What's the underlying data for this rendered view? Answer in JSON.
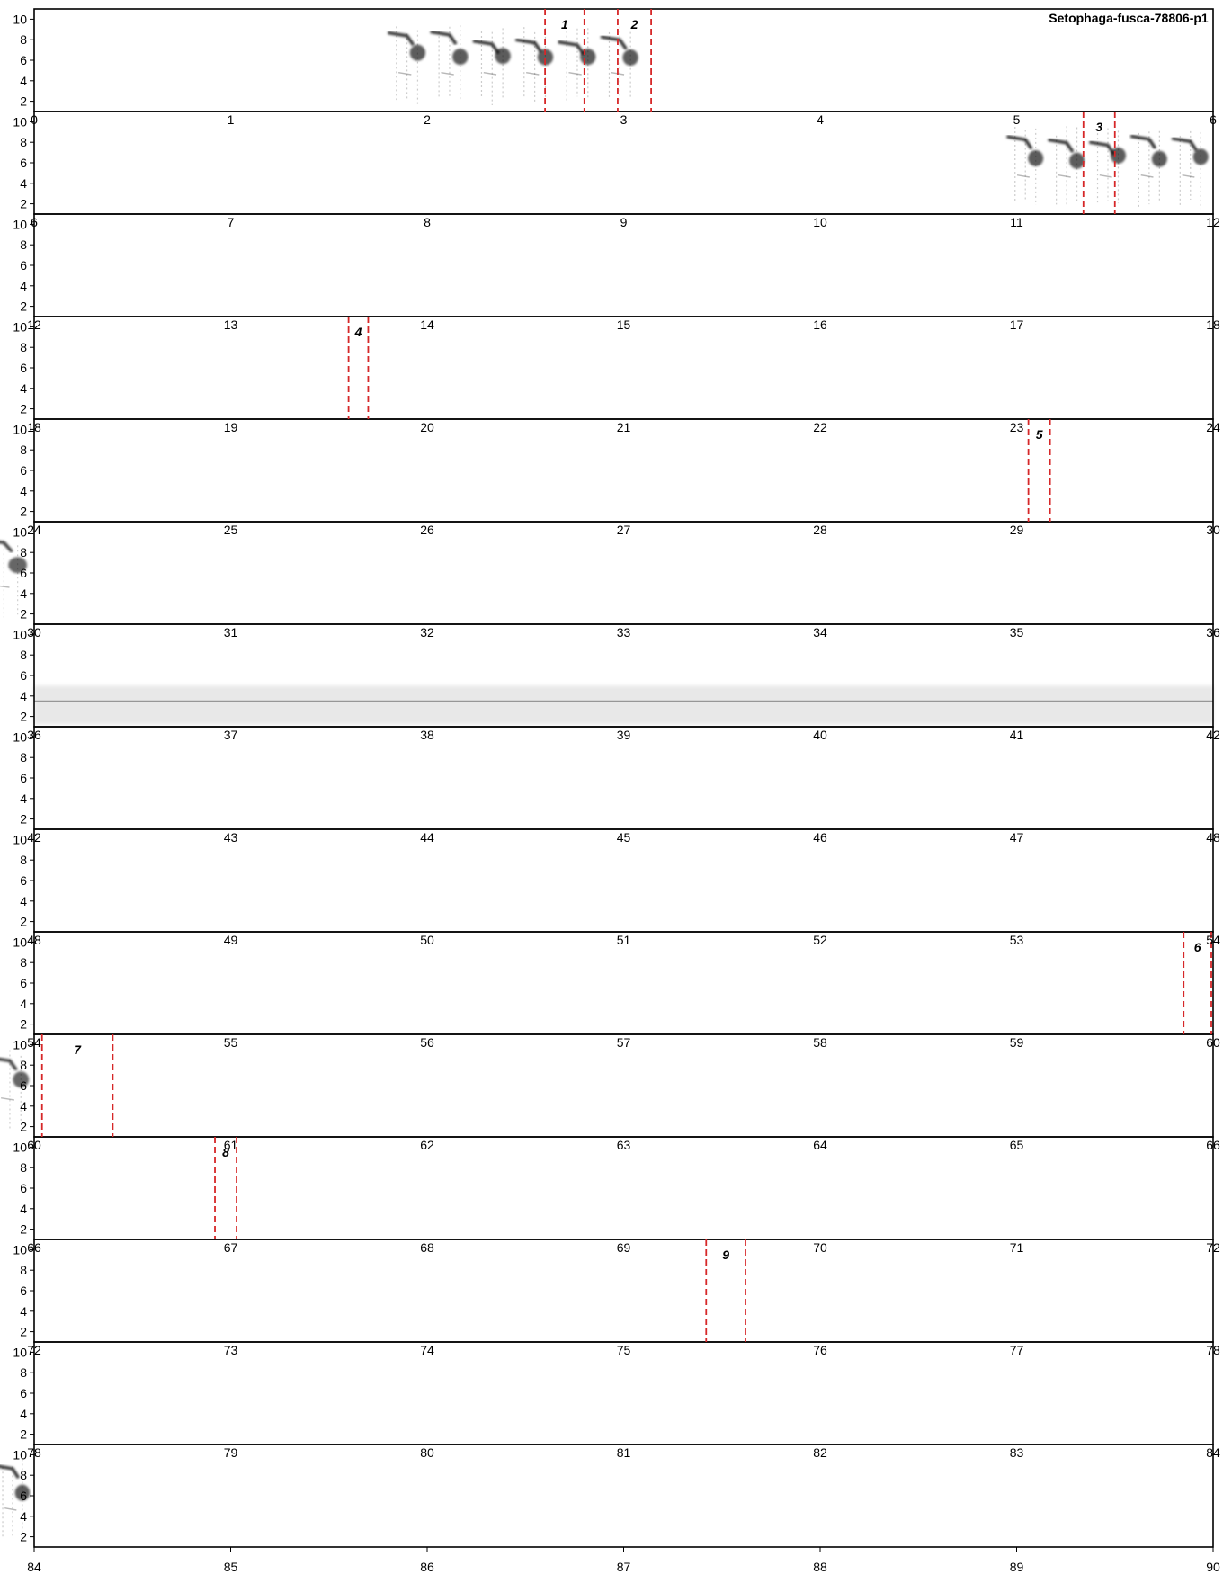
{
  "chart_data": {
    "type": "spectrogram",
    "title": "Setophaga-fusca-78806-p1",
    "y_ticks": [
      2,
      4,
      6,
      8,
      10
    ],
    "ylim": [
      1,
      11
    ],
    "seconds_per_row": 6,
    "rows": [
      {
        "start": 0,
        "x_tick_labels": [
          "0",
          "1",
          "2",
          "3",
          "4",
          "5",
          "6"
        ]
      },
      {
        "start": 6,
        "x_tick_labels": [
          "6",
          "7",
          "8",
          "9",
          "10",
          "11",
          "12"
        ]
      },
      {
        "start": 12,
        "x_tick_labels": [
          "12",
          "13",
          "14",
          "15",
          "16",
          "17",
          "18"
        ]
      },
      {
        "start": 18,
        "x_tick_labels": [
          "18",
          "19",
          "20",
          "21",
          "22",
          "23",
          "24"
        ]
      },
      {
        "start": 24,
        "x_tick_labels": [
          "24",
          "25",
          "26",
          "27",
          "28",
          "29",
          "30"
        ]
      },
      {
        "start": 30,
        "x_tick_labels": [
          "30",
          "31",
          "32",
          "33",
          "34",
          "35",
          "36"
        ]
      },
      {
        "start": 36,
        "x_tick_labels": [
          "36",
          "37",
          "38",
          "39",
          "40",
          "41",
          "42"
        ]
      },
      {
        "start": 42,
        "x_tick_labels": [
          "42",
          "43",
          "44",
          "45",
          "46",
          "47",
          "48"
        ]
      },
      {
        "start": 48,
        "x_tick_labels": [
          "48",
          "49",
          "50",
          "51",
          "52",
          "53",
          "54"
        ]
      },
      {
        "start": 54,
        "x_tick_labels": [
          "54",
          "55",
          "56",
          "57",
          "58",
          "59",
          "60"
        ]
      },
      {
        "start": 60,
        "x_tick_labels": [
          "60",
          "61",
          "62",
          "63",
          "64",
          "65",
          "66"
        ]
      },
      {
        "start": 66,
        "x_tick_labels": [
          "66",
          "67",
          "68",
          "69",
          "70",
          "71",
          "72"
        ]
      },
      {
        "start": 72,
        "x_tick_labels": [
          "72",
          "73",
          "74",
          "75",
          "76",
          "77",
          "78"
        ]
      },
      {
        "start": 78,
        "x_tick_labels": [
          "78",
          "79",
          "80",
          "81",
          "82",
          "83",
          "84"
        ]
      },
      {
        "start": 84,
        "x_tick_labels": [
          "84",
          "85",
          "86",
          "87",
          "88",
          "89",
          "90"
        ]
      }
    ],
    "annotations": [
      {
        "label": "1",
        "t_start": 2.6,
        "t_end": 2.8
      },
      {
        "label": "2",
        "t_start": 2.97,
        "t_end": 3.14
      },
      {
        "label": "3",
        "t_start": 11.34,
        "t_end": 11.5
      },
      {
        "label": "4",
        "t_start": 19.6,
        "t_end": 19.7
      },
      {
        "label": "5",
        "t_start": 29.06,
        "t_end": 29.17
      },
      {
        "label": "6",
        "t_start": 59.85,
        "t_end": 60.0
      },
      {
        "label": "7",
        "t_start": 60.04,
        "t_end": 60.4
      },
      {
        "label": "8",
        "t_start": 66.92,
        "t_end": 67.03
      },
      {
        "label": "9",
        "t_start": 75.42,
        "t_end": 75.62
      }
    ],
    "annotation_color": "#d62728",
    "grid": false
  }
}
